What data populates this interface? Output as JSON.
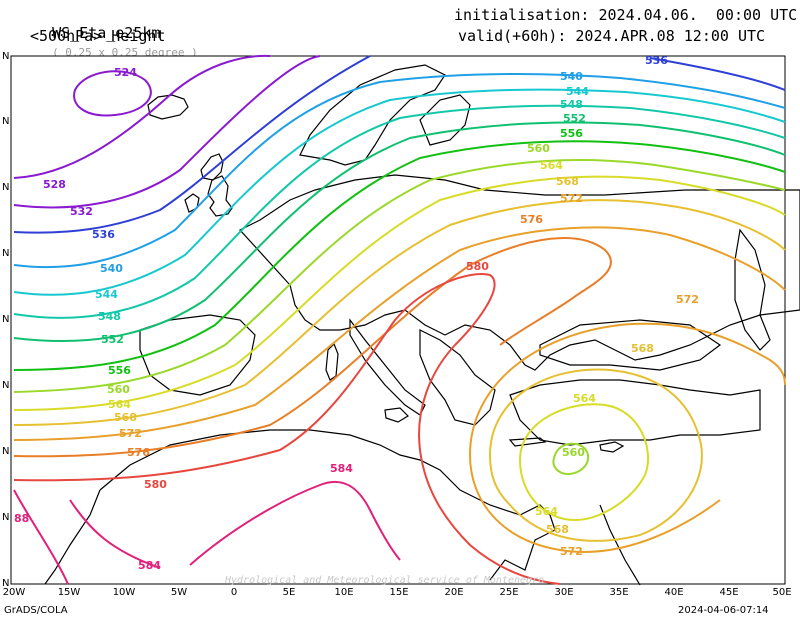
{
  "header": {
    "model": "WS_Eta_e25km",
    "resolution": "( 0.25 x 0.25 degree )",
    "field": "<500hPa> Height",
    "init": "initialisation: 2024.04.06.  00:00 UTC",
    "valid": "valid(+60h): 2024.APR.08 12:00 UTC"
  },
  "axes": {
    "x_ticks": [
      "20W",
      "15W",
      "10W",
      "5W",
      "0",
      "5E",
      "10E",
      "15E",
      "20E",
      "25E",
      "30E",
      "35E",
      "40E",
      "45E",
      "50E"
    ],
    "y_ticks": [
      "N",
      "N",
      "N",
      "N",
      "N",
      "N",
      "N",
      "N",
      "N",
      "N"
    ]
  },
  "footer": {
    "left": "GrADS/COLA",
    "right": "2024-04-06-07:14",
    "watermark": "Hydrological and Meteorological service of Montenegro"
  },
  "contours": [
    {
      "label": "524",
      "color": "#8a1ad0"
    },
    {
      "label": "528",
      "color": "#8a1ad0"
    },
    {
      "label": "532",
      "color": "#8a1ad0"
    },
    {
      "label": "536",
      "color": "#2f3fd6"
    },
    {
      "label": "540",
      "color": "#1fa0e6"
    },
    {
      "label": "544",
      "color": "#18c8d0"
    },
    {
      "label": "548",
      "color": "#12c8a8"
    },
    {
      "label": "552",
      "color": "#10c070"
    },
    {
      "label": "556",
      "color": "#12c012"
    },
    {
      "label": "560",
      "color": "#9ad82a"
    },
    {
      "label": "564",
      "color": "#d8dc28"
    },
    {
      "label": "568",
      "color": "#e6c030"
    },
    {
      "label": "572",
      "color": "#e8a02a"
    },
    {
      "label": "576",
      "color": "#e87e28"
    },
    {
      "label": "580",
      "color": "#e64840"
    },
    {
      "label": "584",
      "color": "#e0207a"
    },
    {
      "label": "88",
      "color": "#e0207a"
    }
  ]
}
